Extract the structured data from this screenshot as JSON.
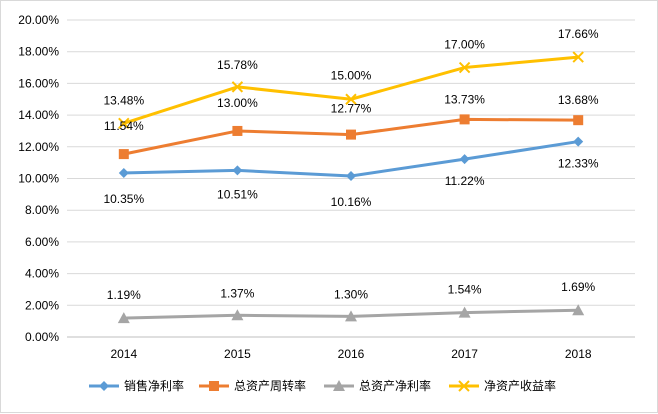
{
  "chart_data": {
    "type": "line",
    "title": "",
    "xlabel": "",
    "ylabel": "",
    "categories": [
      "2014",
      "2015",
      "2016",
      "2017",
      "2018"
    ],
    "y_ticks": [
      "0.00%",
      "2.00%",
      "4.00%",
      "6.00%",
      "8.00%",
      "10.00%",
      "12.00%",
      "14.00%",
      "16.00%",
      "18.00%",
      "20.00%"
    ],
    "ylim": [
      0,
      20
    ],
    "grid": true,
    "legend_position": "bottom",
    "series": [
      {
        "name": "销售净利率",
        "marker": "diamond",
        "color": "#5b9bd5",
        "values": [
          10.35,
          10.51,
          10.16,
          11.22,
          12.33
        ],
        "labels": [
          "10.35%",
          "10.51%",
          "10.16%",
          "11.22%",
          "12.33%"
        ]
      },
      {
        "name": "总资产周转率",
        "marker": "square",
        "color": "#ed7d31",
        "values": [
          11.54,
          13.0,
          12.77,
          13.73,
          13.68
        ],
        "labels": [
          "11.54%",
          "13.00%",
          "12.77%",
          "13.73%",
          "13.68%"
        ]
      },
      {
        "name": "总资产净利率",
        "marker": "triangle",
        "color": "#a5a5a5",
        "values": [
          1.19,
          1.37,
          1.3,
          1.54,
          1.69
        ],
        "labels": [
          "1.19%",
          "1.37%",
          "1.30%",
          "1.54%",
          "1.69%"
        ]
      },
      {
        "name": "净资产收益率",
        "marker": "x",
        "color": "#ffc000",
        "values": [
          13.48,
          15.78,
          15.0,
          17.0,
          17.66
        ],
        "labels": [
          "13.48%",
          "15.78%",
          "15.00%",
          "17.00%",
          "17.66%"
        ]
      }
    ]
  }
}
